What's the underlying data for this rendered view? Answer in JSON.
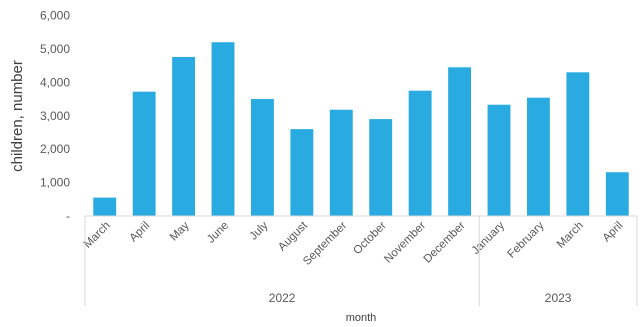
{
  "chart_data": {
    "type": "bar",
    "categories": [
      "March",
      "April",
      "May",
      "June",
      "July",
      "August",
      "September",
      "October",
      "November",
      "December",
      "January",
      "February",
      "March",
      "April"
    ],
    "values": [
      550,
      3720,
      4760,
      5200,
      3500,
      2600,
      3180,
      2900,
      3750,
      4450,
      3330,
      3540,
      4300,
      1310
    ],
    "groups": [
      {
        "label": "2022",
        "count": 10
      },
      {
        "label": "2023",
        "count": 4
      }
    ],
    "ylabel": "children, number",
    "xlabel": "month",
    "ylim": [
      0,
      6000
    ],
    "yticks": [
      0,
      1000,
      2000,
      3000,
      4000,
      5000,
      6000
    ],
    "ytick_labels": [
      "-",
      "1,000",
      "2,000",
      "3,000",
      "4,000",
      "5,000",
      "6,000"
    ],
    "bar_color": "#29ABE2",
    "grid": false,
    "legend": "none"
  }
}
